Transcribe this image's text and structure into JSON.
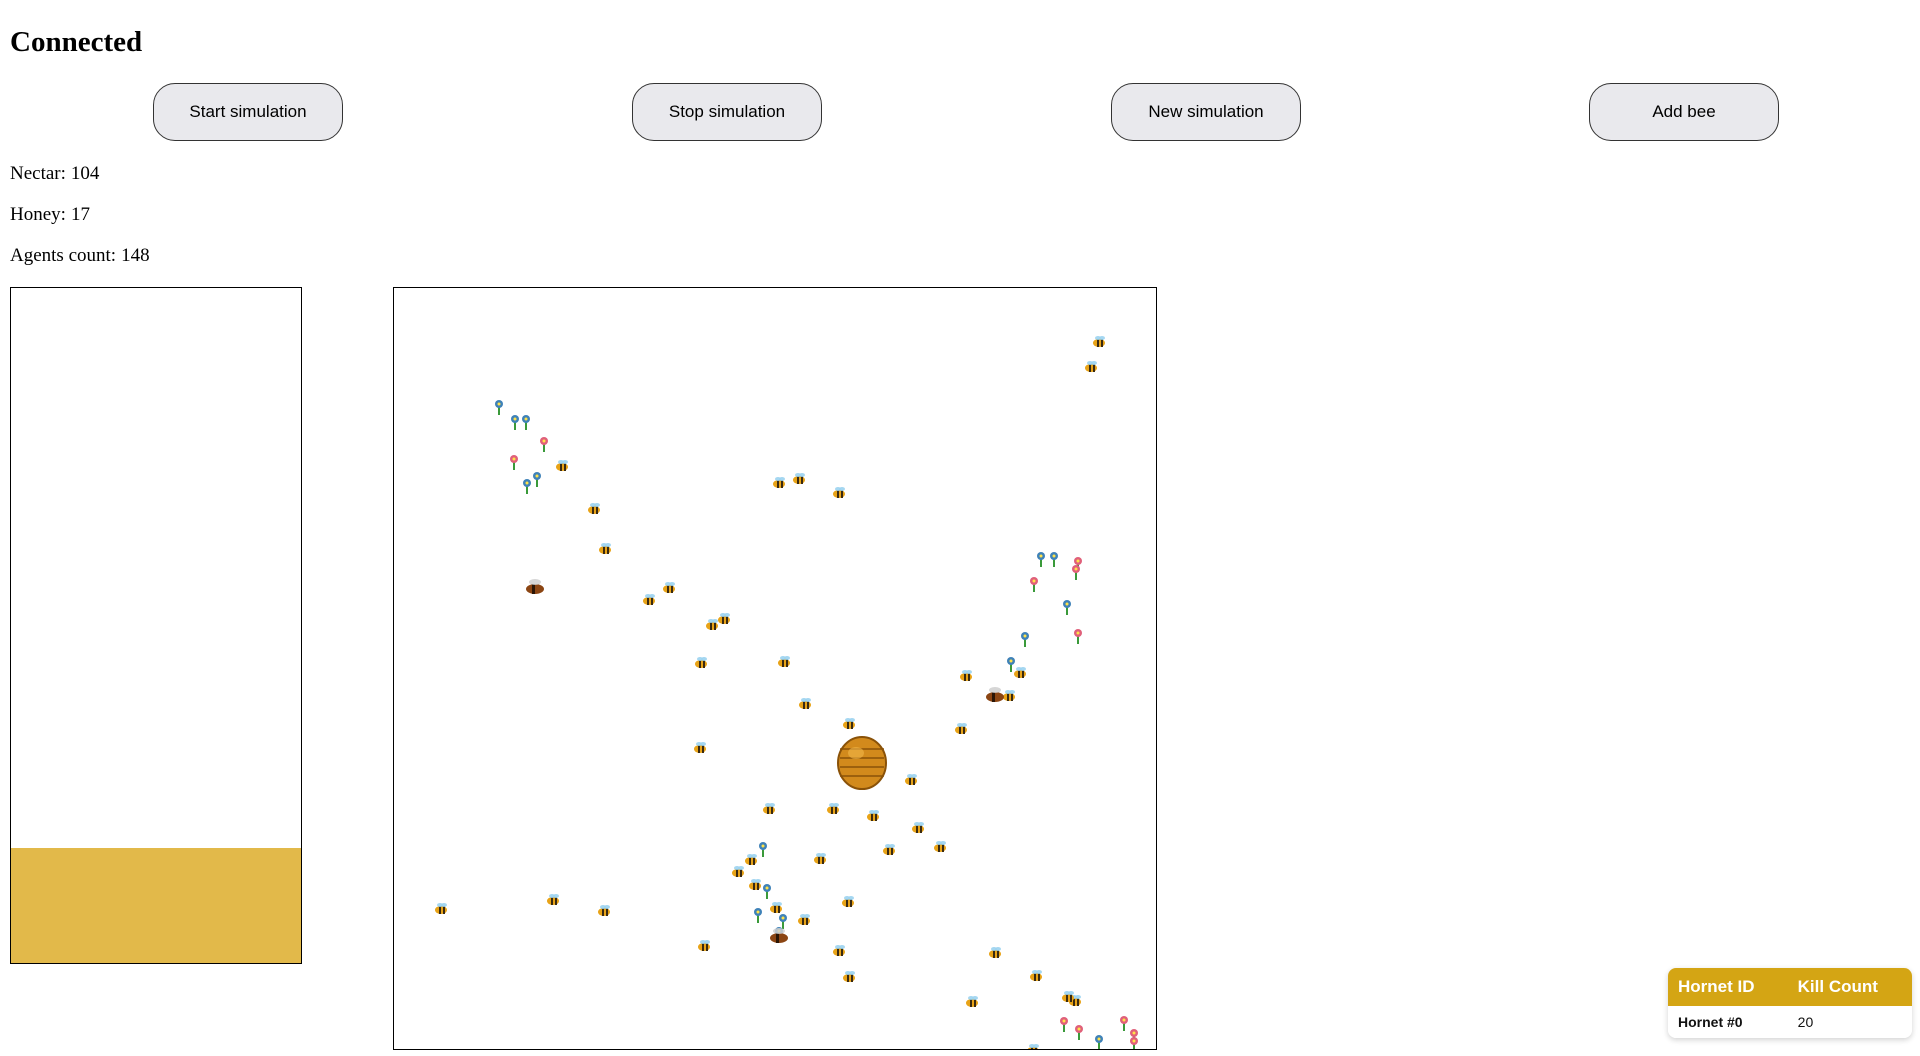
{
  "status": {
    "title": "Connected"
  },
  "controls": {
    "start_label": "Start simulation",
    "stop_label": "Stop simulation",
    "new_label": "New simulation",
    "add_bee_label": "Add bee"
  },
  "stats": {
    "nectar_label": "Nectar:",
    "nectar_value": "104",
    "honey_label": "Honey:",
    "honey_value": "17",
    "agents_label": "Agents count:",
    "agents_value": "148"
  },
  "honey_meter": {
    "fill_fraction": 0.17,
    "color": "#e2b94a"
  },
  "hornets_table": {
    "headers": {
      "id": "Hornet ID",
      "kills": "Kill Count"
    },
    "rows": [
      {
        "id": "Hornet #0",
        "kills": "20"
      }
    ],
    "header_color": "#d4a514"
  },
  "field": {
    "hive_icon": "beehive-icon",
    "bee_icon": "bee-icon",
    "hornet_icon": "hornet-icon",
    "flower_icon": "flower-icon"
  }
}
